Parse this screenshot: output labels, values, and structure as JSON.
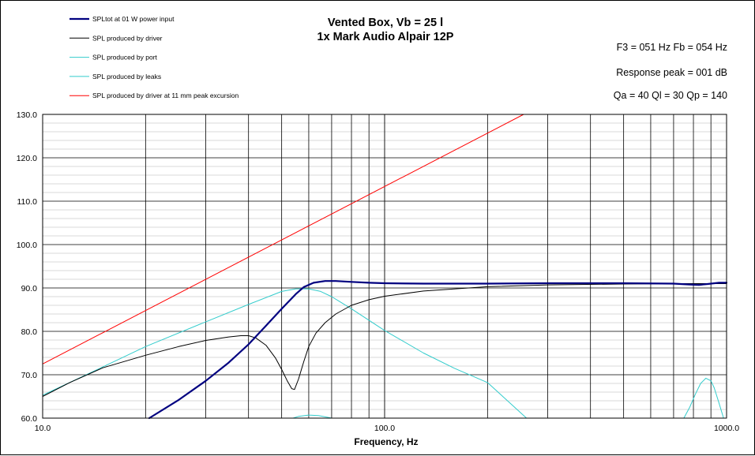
{
  "chart_data": {
    "type": "line",
    "title": [
      "Vented Box, Vb = 25 l",
      "1x Mark Audio Alpair 12P"
    ],
    "info": [
      "F3 = 051 Hz  Fb = 054 Hz",
      "Response  peak = 001 dB",
      "Qa = 40  Ql = 30  Qp = 140"
    ],
    "xlabel": "Frequency, Hz",
    "ylabel": "",
    "xscale": "log",
    "xlim": [
      10,
      1000
    ],
    "ylim": [
      60,
      130
    ],
    "x_tick_labels": [
      "10.0",
      "100.0",
      "1000.0"
    ],
    "x_ticks": [
      10,
      100,
      1000
    ],
    "y_tick_labels": [
      "60.0",
      "70.0",
      "80.0",
      "90.0",
      "100.0",
      "110.0",
      "120.0",
      "130.0"
    ],
    "y_ticks": [
      60,
      70,
      80,
      90,
      100,
      110,
      120,
      130
    ],
    "grid": true,
    "legend_position": "top-left",
    "series": [
      {
        "name": "SPLtot at 01 W power input",
        "color": "#000080",
        "width": 2.2,
        "points": [
          [
            20.5,
            60
          ],
          [
            25,
            64.2
          ],
          [
            30,
            68.6
          ],
          [
            35,
            72.8
          ],
          [
            40,
            77
          ],
          [
            45,
            81.3
          ],
          [
            50,
            85.2
          ],
          [
            55,
            88.6
          ],
          [
            58,
            90.2
          ],
          [
            62,
            91.2
          ],
          [
            67,
            91.6
          ],
          [
            72,
            91.6
          ],
          [
            80,
            91.4
          ],
          [
            90,
            91.2
          ],
          [
            100,
            91.1
          ],
          [
            130,
            91
          ],
          [
            200,
            91
          ],
          [
            300,
            91.1
          ],
          [
            500,
            91.1
          ],
          [
            700,
            91
          ],
          [
            780,
            90.8
          ],
          [
            830,
            90.7
          ],
          [
            880,
            90.9
          ],
          [
            950,
            91.2
          ],
          [
            1000,
            91.2
          ]
        ]
      },
      {
        "name": "SPL produced by driver",
        "color": "#000000",
        "width": 1,
        "points": [
          [
            10,
            65
          ],
          [
            12,
            68.2
          ],
          [
            15,
            71.6
          ],
          [
            20,
            74.5
          ],
          [
            25,
            76.5
          ],
          [
            30,
            77.9
          ],
          [
            35,
            78.7
          ],
          [
            38,
            79
          ],
          [
            40,
            79
          ],
          [
            42,
            78.5
          ],
          [
            45,
            76.8
          ],
          [
            48,
            73.8
          ],
          [
            50,
            71.2
          ],
          [
            52,
            68.5
          ],
          [
            53.5,
            66.8
          ],
          [
            54.5,
            66.6
          ],
          [
            56,
            69
          ],
          [
            58,
            73
          ],
          [
            60,
            76.5
          ],
          [
            63,
            79.6
          ],
          [
            67,
            82
          ],
          [
            72,
            84
          ],
          [
            80,
            86
          ],
          [
            90,
            87.3
          ],
          [
            100,
            88.1
          ],
          [
            130,
            89.3
          ],
          [
            200,
            90.3
          ],
          [
            300,
            90.7
          ],
          [
            500,
            90.9
          ],
          [
            700,
            91
          ],
          [
            1000,
            91
          ]
        ]
      },
      {
        "name": "SPL produced by port",
        "color": "#33CCCC",
        "width": 1,
        "points": [
          [
            10,
            65.3
          ],
          [
            15,
            71.8
          ],
          [
            20,
            76.5
          ],
          [
            30,
            82.2
          ],
          [
            40,
            86.2
          ],
          [
            50,
            89.2
          ],
          [
            55,
            89.8
          ],
          [
            60,
            89.8
          ],
          [
            65,
            89.2
          ],
          [
            70,
            88
          ],
          [
            80,
            85.2
          ],
          [
            100,
            80.2
          ],
          [
            130,
            75
          ],
          [
            160,
            71.5
          ],
          [
            200,
            68.2
          ],
          [
            260,
            60
          ]
        ]
      },
      {
        "name": "SPL produced by leaks",
        "color": "#33CCCC",
        "width": 1,
        "segments": [
          [
            [
              54,
              60
            ],
            [
              56,
              60.4
            ],
            [
              60,
              60.7
            ],
            [
              64,
              60.6
            ],
            [
              68,
              60.2
            ],
            [
              70,
              60
            ]
          ],
          [
            [
              750,
              60
            ],
            [
              780,
              62.5
            ],
            [
              810,
              65.5
            ],
            [
              840,
              68
            ],
            [
              870,
              69.2
            ],
            [
              900,
              68.6
            ],
            [
              920,
              67
            ],
            [
              950,
              63.5
            ],
            [
              980,
              60
            ]
          ]
        ]
      },
      {
        "name": "SPL produced by driver at 11 mm peak excursion",
        "color": "#FF0000",
        "width": 1,
        "points": [
          [
            10,
            72.5
          ],
          [
            255,
            130
          ]
        ]
      }
    ]
  }
}
